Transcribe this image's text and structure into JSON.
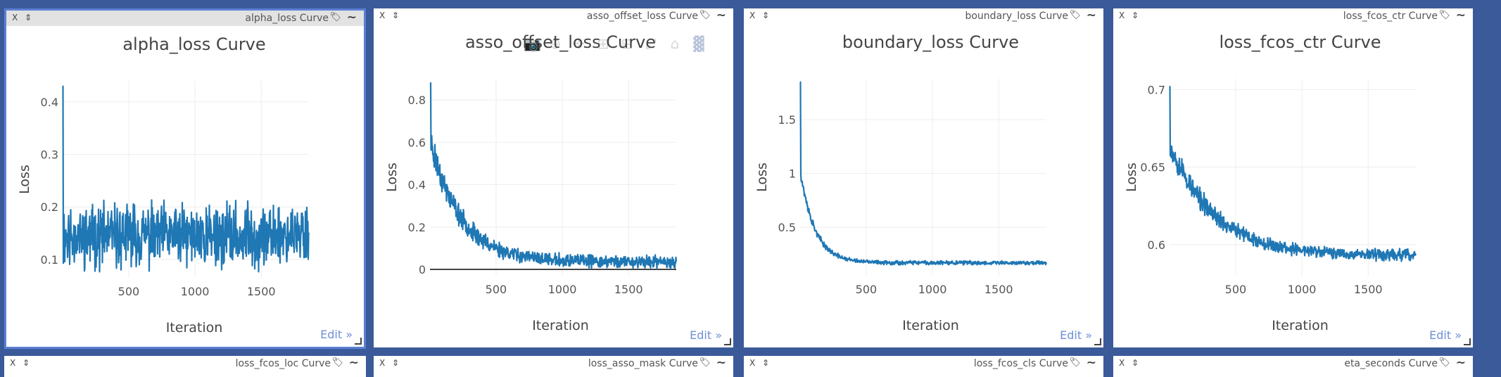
{
  "panes": [
    {
      "window_title": "alpha_loss Curve",
      "close": "X",
      "drag": "⇕",
      "tag_icon": "tag-icon",
      "smooth_icon": "~",
      "edit_label": "Edit »",
      "selected": true
    },
    {
      "window_title": "asso_offset_loss Curve",
      "close": "X",
      "drag": "⇕",
      "tag_icon": "tag-icon",
      "smooth_icon": "~",
      "edit_label": "Edit »",
      "selected": false
    },
    {
      "window_title": "boundary_loss Curve",
      "close": "X",
      "drag": "⇕",
      "tag_icon": "tag-icon",
      "smooth_icon": "~",
      "edit_label": "Edit »",
      "selected": false
    },
    {
      "window_title": "loss_fcos_ctr Curve",
      "close": "X",
      "drag": "⇕",
      "tag_icon": "tag-icon",
      "smooth_icon": "~",
      "edit_label": "Edit »",
      "selected": false
    }
  ],
  "bottom_titles": [
    "loss_fcos_loc Curve",
    "loss_asso_mask Curve",
    "loss_fcos_cls Curve",
    "eta_seconds Curve"
  ],
  "modebar_icons": [
    "camera-icon",
    "zoom-icon",
    "pan-icon",
    "zoom-in-icon",
    "zoom-out-icon",
    "autoscale-icon",
    "home-icon",
    "plotly-logo-icon"
  ],
  "chart_data": [
    {
      "type": "line",
      "title": "alpha_loss Curve",
      "xlabel": "Iteration",
      "ylabel": "Loss",
      "xlim": [
        1,
        1860
      ],
      "ylim": [
        0.065,
        0.44
      ],
      "xticks": [
        500,
        1000,
        1500
      ],
      "xtick_labels": [
        "500",
        "1000",
        "1500"
      ],
      "yticks": [
        0.1,
        0.2,
        0.3,
        0.4
      ],
      "ytick_labels": [
        "0.1",
        "0.2",
        "0.3",
        "0.4"
      ],
      "grid": true,
      "zeroline": false,
      "line_color": "#1f77b4",
      "series": [
        {
          "x_start": 1,
          "x_end": 1860,
          "start_value": 0.43,
          "spike_end": 5,
          "baseline": 0.145,
          "final": 0.145,
          "decay": 1,
          "noise": 0.045,
          "seed": 11
        }
      ]
    },
    {
      "type": "line",
      "title": "asso_offset_loss Curve",
      "xlabel": "Iteration",
      "ylabel": "Loss",
      "xlim": [
        1,
        1860
      ],
      "ylim": [
        -0.03,
        0.9
      ],
      "xticks": [
        500,
        1000,
        1500
      ],
      "xtick_labels": [
        "500",
        "1000",
        "1500"
      ],
      "yticks": [
        0,
        0.2,
        0.4,
        0.6,
        0.8
      ],
      "ytick_labels": [
        "0",
        "0.2",
        "0.4",
        "0.6",
        "0.8"
      ],
      "grid": true,
      "zeroline": true,
      "line_color": "#1f77b4",
      "series": [
        {
          "x_start": 1,
          "x_end": 1860,
          "start_value": 0.88,
          "spike_end": 8,
          "baseline": 0.6,
          "final": 0.035,
          "decay": 230,
          "noise": 0.022,
          "seed": 23
        }
      ]
    },
    {
      "type": "line",
      "title": "boundary_loss Curve",
      "xlabel": "Iteration",
      "ylabel": "Loss",
      "xlim": [
        1,
        1860
      ],
      "ylim": [
        0.05,
        1.88
      ],
      "xticks": [
        500,
        1000,
        1500
      ],
      "xtick_labels": [
        "500",
        "1000",
        "1500"
      ],
      "yticks": [
        0.5,
        1,
        1.5
      ],
      "ytick_labels": [
        "0.5",
        "1",
        "1.5"
      ],
      "grid": true,
      "zeroline": false,
      "line_color": "#1f77b4",
      "series": [
        {
          "x_start": 1,
          "x_end": 1860,
          "start_value": 1.85,
          "spike_end": 6,
          "baseline": 1.0,
          "final": 0.17,
          "decay": 110,
          "noise": 0.014,
          "seed": 37
        }
      ]
    },
    {
      "type": "line",
      "title": "loss_fcos_ctr Curve",
      "xlabel": "Iteration",
      "ylabel": "Loss",
      "xlim": [
        1,
        1860
      ],
      "ylim": [
        0.58,
        0.707
      ],
      "xticks": [
        500,
        1000,
        1500
      ],
      "xtick_labels": [
        "500",
        "1000",
        "1500"
      ],
      "yticks": [
        0.6,
        0.65,
        0.7
      ],
      "ytick_labels": [
        "0.6",
        "0.65",
        "0.7"
      ],
      "grid": true,
      "zeroline": false,
      "line_color": "#1f77b4",
      "series": [
        {
          "x_start": 1,
          "x_end": 1860,
          "start_value": 0.702,
          "spike_end": 5,
          "baseline": 0.665,
          "final": 0.593,
          "decay": 330,
          "noise": 0.0028,
          "seed": 53
        }
      ]
    }
  ]
}
